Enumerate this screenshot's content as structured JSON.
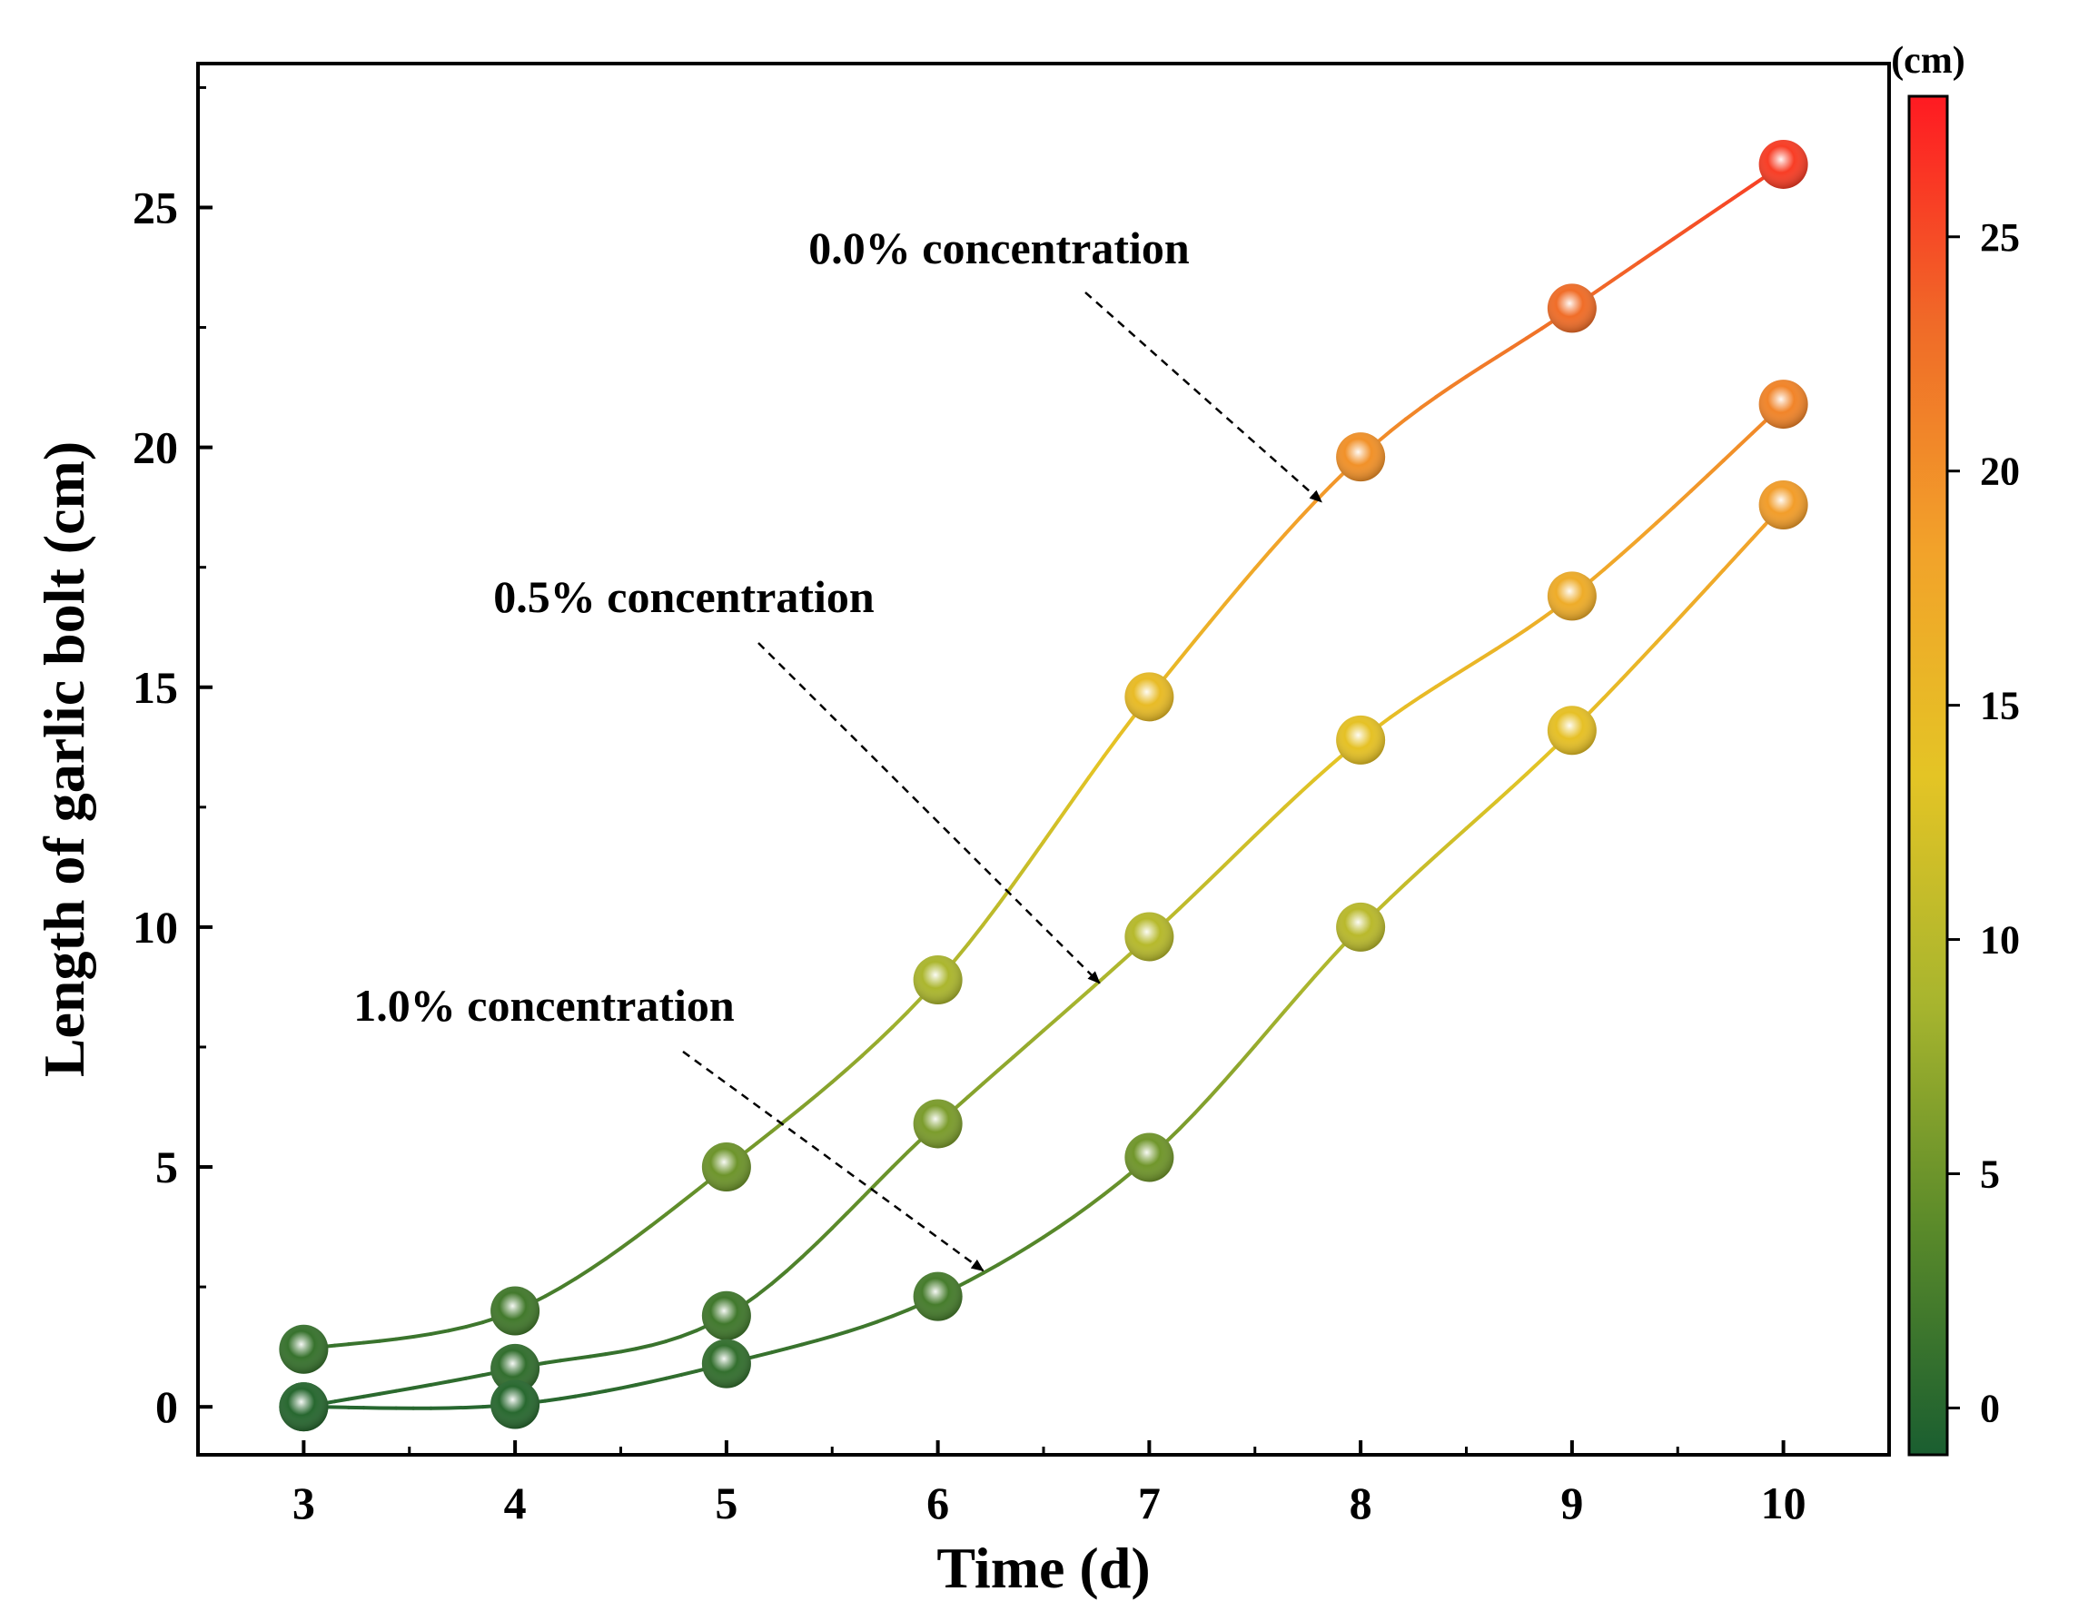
{
  "chart_data": {
    "type": "line",
    "xlabel": "Time (d)",
    "ylabel": "Length of garlic bolt (cm)",
    "xlim": [
      2.5,
      10.5
    ],
    "ylim": [
      -1,
      28
    ],
    "x_ticks": [
      3,
      4,
      5,
      6,
      7,
      8,
      9,
      10
    ],
    "y_ticks": [
      0,
      5,
      10,
      15,
      20,
      25
    ],
    "x": [
      3,
      4,
      5,
      6,
      7,
      8,
      9,
      10
    ],
    "series": [
      {
        "name": "0.0% concentration",
        "values": [
          1.2,
          2.0,
          5.0,
          8.9,
          14.8,
          19.8,
          22.9,
          25.9
        ]
      },
      {
        "name": "0.5% concentration",
        "values": [
          0.0,
          0.8,
          1.9,
          5.9,
          9.8,
          13.9,
          16.9,
          20.9
        ]
      },
      {
        "name": "1.0% concentration",
        "values": [
          0.0,
          0.05,
          0.9,
          2.3,
          5.2,
          10.0,
          14.1,
          18.8
        ]
      }
    ],
    "annotations": [
      {
        "text": "0.0% concentration",
        "series": 0,
        "target_x": 7.85
      },
      {
        "text": "0.5% concentration",
        "series": 1,
        "target_x": 6.8
      },
      {
        "text": "1.0% concentration",
        "series": 2,
        "target_x": 6.25
      }
    ],
    "colorbar": {
      "unit_label": "(cm)",
      "range": [
        -1,
        28
      ],
      "ticks": [
        0,
        5,
        10,
        15,
        20,
        25
      ],
      "colors": [
        "#1a5e30",
        "#5a8a2a",
        "#a8b52e",
        "#e4c425",
        "#f2a22a",
        "#f06a28",
        "#ff1a22"
      ]
    }
  }
}
